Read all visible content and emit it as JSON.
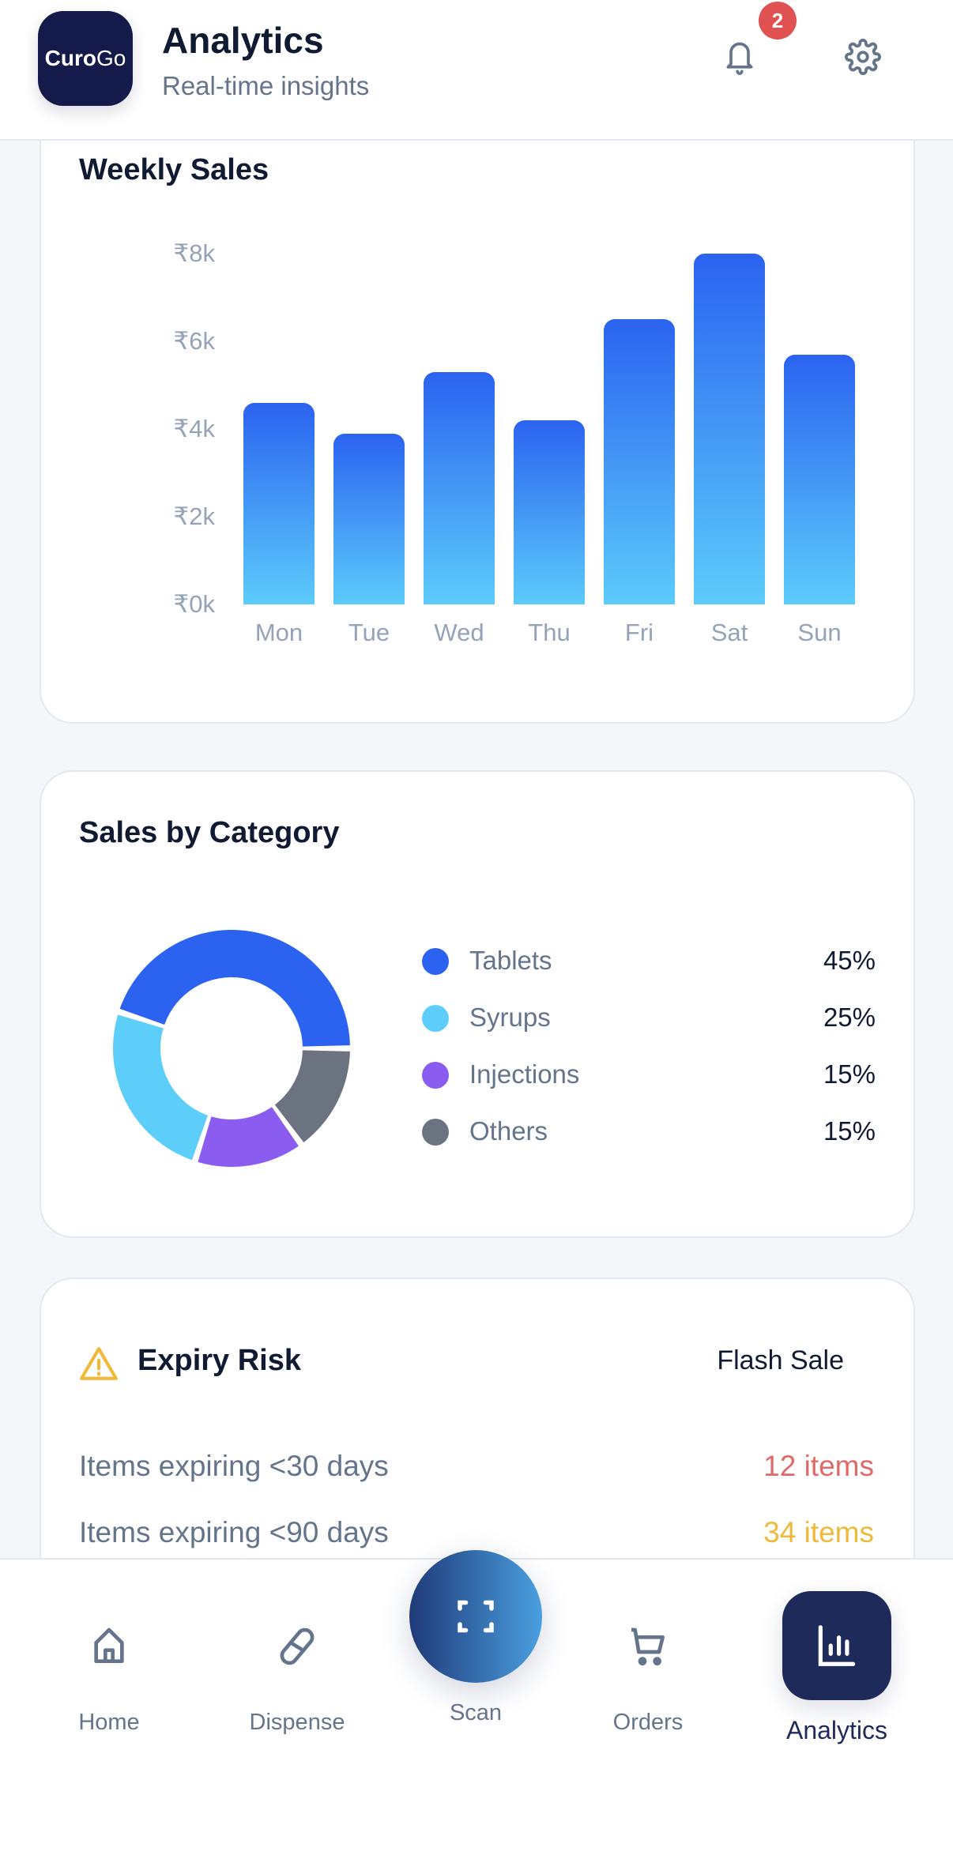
{
  "header": {
    "logo_text_bold": "Curo",
    "logo_text_light": "Go",
    "title": "Analytics",
    "subtitle": "Real-time insights",
    "notification_count": "2"
  },
  "weekly_sales": {
    "title": "Weekly Sales"
  },
  "chart_data": {
    "type": "bar",
    "title": "Weekly Sales",
    "categories": [
      "Mon",
      "Tue",
      "Wed",
      "Thu",
      "Fri",
      "Sat",
      "Sun"
    ],
    "values": [
      4600,
      3900,
      5300,
      4200,
      6500,
      8000,
      5700
    ],
    "y_ticks": [
      "₹0k",
      "₹2k",
      "₹4k",
      "₹6k",
      "₹8k"
    ],
    "ylim": [
      0,
      8000
    ],
    "xlabel": "",
    "ylabel": "",
    "colors": {
      "top": "#2b63f0",
      "bottom": "#5ccbfa"
    }
  },
  "category": {
    "title": "Sales by Category",
    "items": [
      {
        "label": "Tablets",
        "pct": "45%",
        "value": 45,
        "color": "#2b63f0"
      },
      {
        "label": "Syrups",
        "pct": "25%",
        "value": 25,
        "color": "#5dcdfa"
      },
      {
        "label": "Injections",
        "pct": "15%",
        "value": 15,
        "color": "#8a5cf0"
      },
      {
        "label": "Others",
        "pct": "15%",
        "value": 15,
        "color": "#6b7280"
      }
    ]
  },
  "expiry": {
    "title": "Expiry Risk",
    "action": "Flash Sale",
    "rows": [
      {
        "label": "Items expiring <30 days",
        "value": "12 items",
        "color": "#e06a6a"
      },
      {
        "label": "Items expiring <90 days",
        "value": "34 items",
        "color": "#f0b93a"
      }
    ]
  },
  "nav": {
    "home": "Home",
    "dispense": "Dispense",
    "scan": "Scan",
    "orders": "Orders",
    "analytics": "Analytics"
  }
}
